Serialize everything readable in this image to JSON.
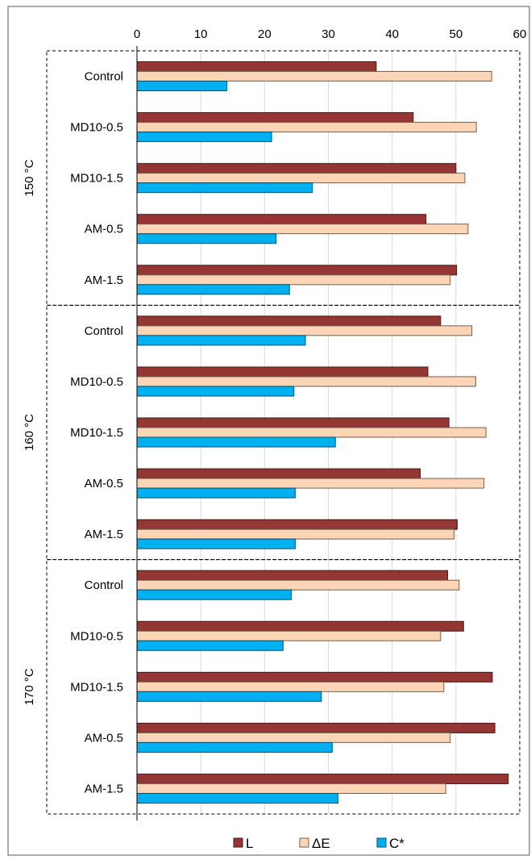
{
  "chart_data": {
    "type": "bar",
    "orientation": "horizontal",
    "title": "",
    "xlabel": "",
    "ylabel": "",
    "xlim": [
      0,
      60
    ],
    "x_ticks": [
      "0",
      "10",
      "20",
      "30",
      "40",
      "50",
      "60"
    ],
    "x_axis_position": "top",
    "grid": true,
    "legend_position": "bottom",
    "groups": [
      {
        "label": "150 °C",
        "categories": [
          "Control",
          "MD10-0.5",
          "MD10-1.5",
          "AM-0.5",
          "AM-1.5"
        ],
        "series": [
          {
            "name": "L",
            "values": [
              37.5,
              43.3,
              50.0,
              45.3,
              50.1
            ]
          },
          {
            "name": "ΔE",
            "values": [
              55.6,
              53.2,
              51.4,
              51.9,
              49.1
            ]
          },
          {
            "name": "C*",
            "values": [
              14.1,
              21.1,
              27.5,
              21.8,
              23.9
            ]
          }
        ]
      },
      {
        "label": "160 °C",
        "categories": [
          "Control",
          "MD10-0.5",
          "MD10-1.5",
          "AM-0.5",
          "AM-1.5"
        ],
        "series": [
          {
            "name": "L",
            "values": [
              47.6,
              45.6,
              48.9,
              44.4,
              50.2
            ]
          },
          {
            "name": "ΔE",
            "values": [
              52.5,
              53.1,
              54.7,
              54.4,
              49.7
            ]
          },
          {
            "name": "C*",
            "values": [
              26.4,
              24.6,
              31.1,
              24.8,
              24.8
            ]
          }
        ]
      },
      {
        "label": "170 °C",
        "categories": [
          "Control",
          "MD10-0.5",
          "MD10-1.5",
          "AM-0.5",
          "AM-1.5"
        ],
        "series": [
          {
            "name": "L",
            "values": [
              48.7,
              51.2,
              55.7,
              56.1,
              58.2
            ]
          },
          {
            "name": "ΔE",
            "values": [
              50.5,
              47.6,
              48.1,
              49.1,
              48.4
            ]
          },
          {
            "name": "C*",
            "values": [
              24.2,
              22.9,
              28.9,
              30.6,
              31.5
            ]
          }
        ]
      }
    ],
    "series_colors": {
      "L": "#943634",
      "ΔE": "#FBD5B5",
      "C*": "#00B0F0"
    },
    "legend": [
      "L",
      "ΔE",
      "C*"
    ]
  }
}
